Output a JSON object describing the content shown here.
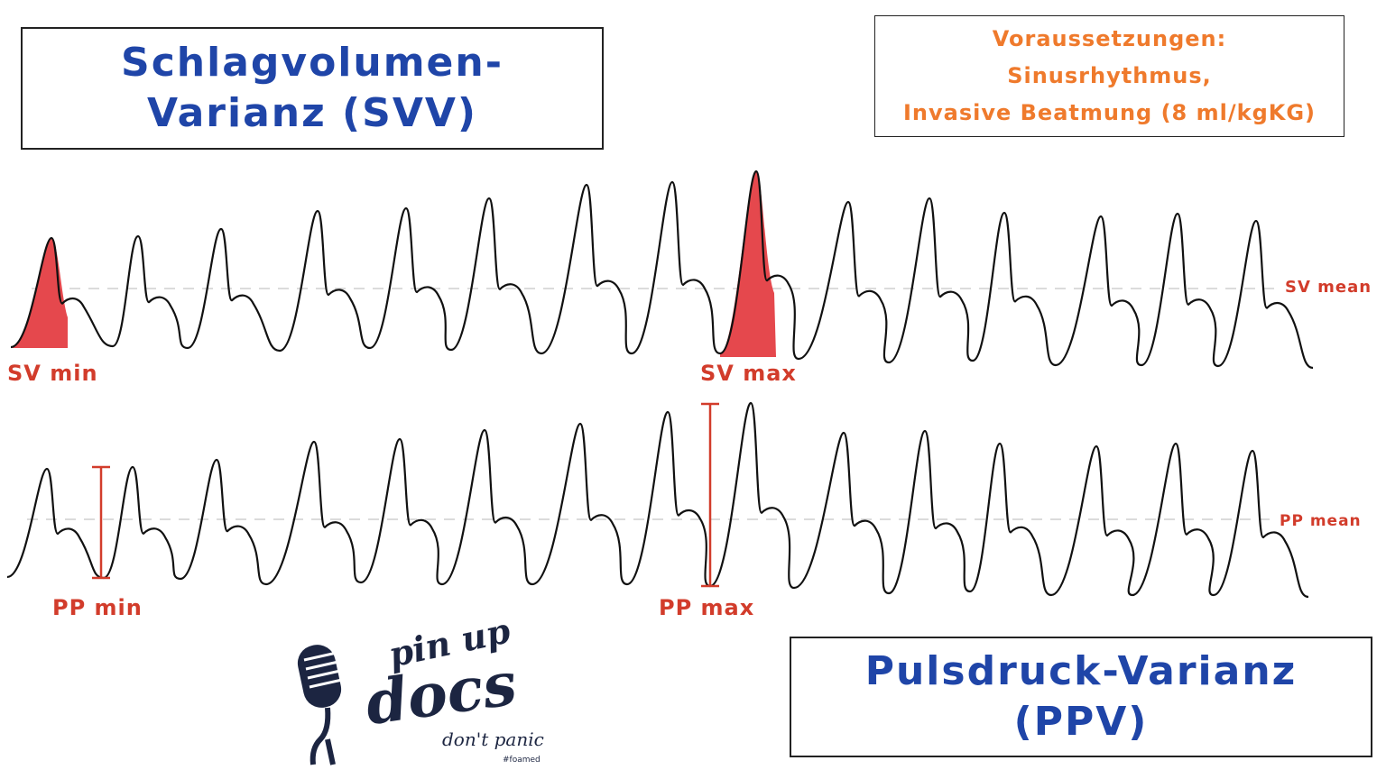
{
  "titles": {
    "svv_line1": "Schlagvolumen-",
    "svv_line2": "Varianz (SVV)",
    "ppv_line1": "Pulsdruck-Varianz",
    "ppv_line2": "(PPV)"
  },
  "prerequisites": {
    "heading": "Voraussetzungen:",
    "line1": "Sinusrhythmus,",
    "line2": "Invasive Beatmung (8 ml/kgKG)"
  },
  "labels": {
    "sv_min": "SV min",
    "sv_max": "SV max",
    "sv_mean": "SV mean",
    "pp_min": "PP min",
    "pp_max": "PP max",
    "pp_mean": "PP mean"
  },
  "logo": {
    "text1": "pin up",
    "text2": "docs",
    "text3": "don't panic",
    "text4": "#foamed"
  },
  "colors": {
    "title_blue": "#1f45a8",
    "prereq_orange": "#ef7a2c",
    "marker_red": "#d23c2b",
    "fill_red": "#e5484d",
    "logo_navy": "#1c2541"
  }
}
